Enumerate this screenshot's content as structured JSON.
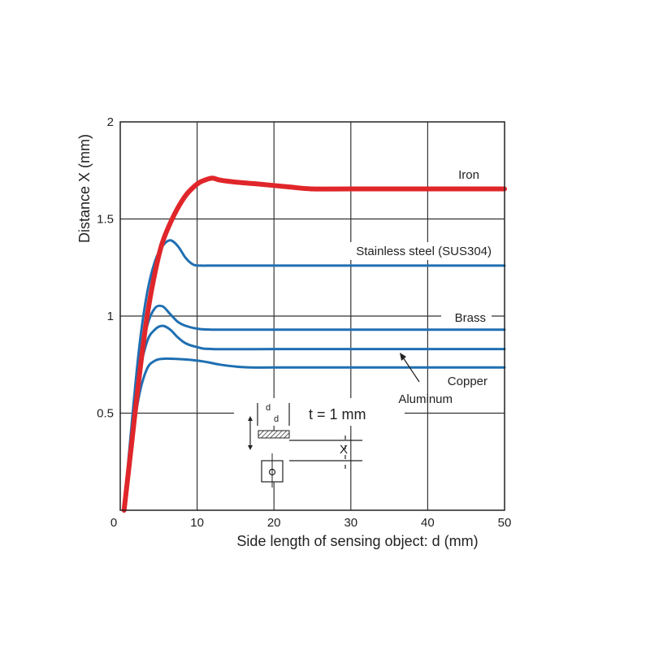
{
  "chart_data": {
    "type": "line",
    "xlabel": "Side length of sensing object: d (mm)",
    "ylabel": "Distance X (mm)",
    "xlim": [
      0,
      50
    ],
    "ylim": [
      0,
      2
    ],
    "xticks": [
      "0",
      "10",
      "20",
      "30",
      "40",
      "50"
    ],
    "yticks": [
      "0.5",
      "1",
      "1.5",
      "2"
    ],
    "grid": true,
    "series": [
      {
        "name": "Iron",
        "color": "#e0262a",
        "x": [
          0.5,
          1.5,
          2.5,
          3.5,
          4.5,
          5.5,
          7,
          8.5,
          10,
          11,
          12,
          13,
          15,
          18,
          22,
          25,
          30,
          40,
          50
        ],
        "y": [
          0,
          0.35,
          0.7,
          1.0,
          1.22,
          1.38,
          1.52,
          1.62,
          1.68,
          1.7,
          1.71,
          1.7,
          1.69,
          1.68,
          1.665,
          1.655,
          1.655,
          1.655,
          1.655
        ]
      },
      {
        "name": "Stainless steel (SUS304)",
        "color": "#1f6fb2",
        "x": [
          0.5,
          1.5,
          2.5,
          3.5,
          4.5,
          5.5,
          6.5,
          7.5,
          8.5,
          9.5,
          10.5,
          12,
          20,
          30,
          50
        ],
        "y": [
          0,
          0.45,
          0.85,
          1.12,
          1.28,
          1.36,
          1.39,
          1.36,
          1.3,
          1.265,
          1.26,
          1.26,
          1.26,
          1.26,
          1.26
        ]
      },
      {
        "name": "Brass",
        "color": "#1f6fb2",
        "x": [
          0.5,
          1.5,
          2.5,
          3.5,
          4.5,
          5.5,
          6.5,
          7.5,
          8.5,
          10,
          12,
          20,
          30,
          50
        ],
        "y": [
          0,
          0.4,
          0.75,
          0.95,
          1.04,
          1.05,
          1.01,
          0.97,
          0.95,
          0.935,
          0.93,
          0.93,
          0.93,
          0.93
        ]
      },
      {
        "name": "Copper",
        "color": "#1f6fb2",
        "x": [
          0.5,
          1.5,
          2.5,
          3.5,
          4.5,
          5.5,
          6.5,
          7.5,
          8.5,
          10,
          12,
          20,
          30,
          50
        ],
        "y": [
          0,
          0.38,
          0.7,
          0.87,
          0.93,
          0.95,
          0.93,
          0.89,
          0.86,
          0.84,
          0.83,
          0.83,
          0.83,
          0.83
        ]
      },
      {
        "name": "Aluminum",
        "color": "#1f6fb2",
        "x": [
          0.5,
          1.5,
          2.5,
          3.5,
          4.5,
          5.5,
          7,
          9,
          11,
          13,
          15,
          17,
          20,
          30,
          50
        ],
        "y": [
          0,
          0.35,
          0.6,
          0.73,
          0.77,
          0.78,
          0.78,
          0.775,
          0.765,
          0.75,
          0.74,
          0.735,
          0.735,
          0.735,
          0.735
        ]
      }
    ],
    "inset": {
      "d_label": "d",
      "thickness_label": "t = 1 mm",
      "distance_label": "X"
    }
  }
}
